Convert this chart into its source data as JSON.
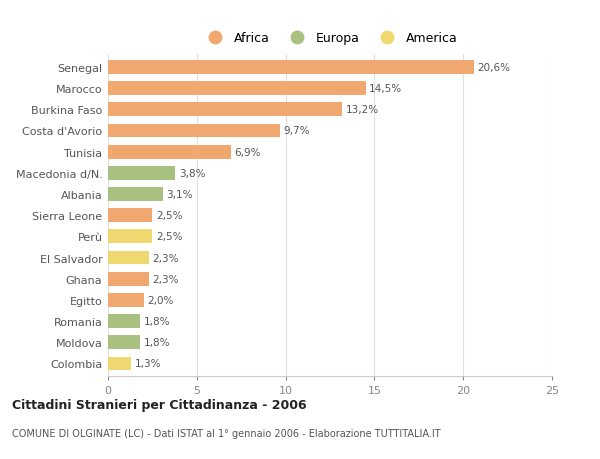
{
  "categories": [
    "Senegal",
    "Marocco",
    "Burkina Faso",
    "Costa d'Avorio",
    "Tunisia",
    "Macedonia d/N.",
    "Albania",
    "Sierra Leone",
    "Perù",
    "El Salvador",
    "Ghana",
    "Egitto",
    "Romania",
    "Moldova",
    "Colombia"
  ],
  "values": [
    20.6,
    14.5,
    13.2,
    9.7,
    6.9,
    3.8,
    3.1,
    2.5,
    2.5,
    2.3,
    2.3,
    2.0,
    1.8,
    1.8,
    1.3
  ],
  "labels": [
    "20,6%",
    "14,5%",
    "13,2%",
    "9,7%",
    "6,9%",
    "3,8%",
    "3,1%",
    "2,5%",
    "2,5%",
    "2,3%",
    "2,3%",
    "2,0%",
    "1,8%",
    "1,8%",
    "1,3%"
  ],
  "continents": [
    "Africa",
    "Africa",
    "Africa",
    "Africa",
    "Africa",
    "Europa",
    "Europa",
    "Africa",
    "America",
    "America",
    "Africa",
    "Africa",
    "Europa",
    "Europa",
    "America"
  ],
  "colors": {
    "Africa": "#F0A870",
    "Europa": "#A8C080",
    "America": "#F0D870"
  },
  "legend_labels": [
    "Africa",
    "Europa",
    "America"
  ],
  "title": "Cittadini Stranieri per Cittadinanza - 2006",
  "subtitle": "COMUNE DI OLGINATE (LC) - Dati ISTAT al 1° gennaio 2006 - Elaborazione TUTTITALIA.IT",
  "xlim": [
    0,
    25
  ],
  "xticks": [
    0,
    5,
    10,
    15,
    20,
    25
  ],
  "background_color": "#ffffff",
  "bar_height": 0.65
}
